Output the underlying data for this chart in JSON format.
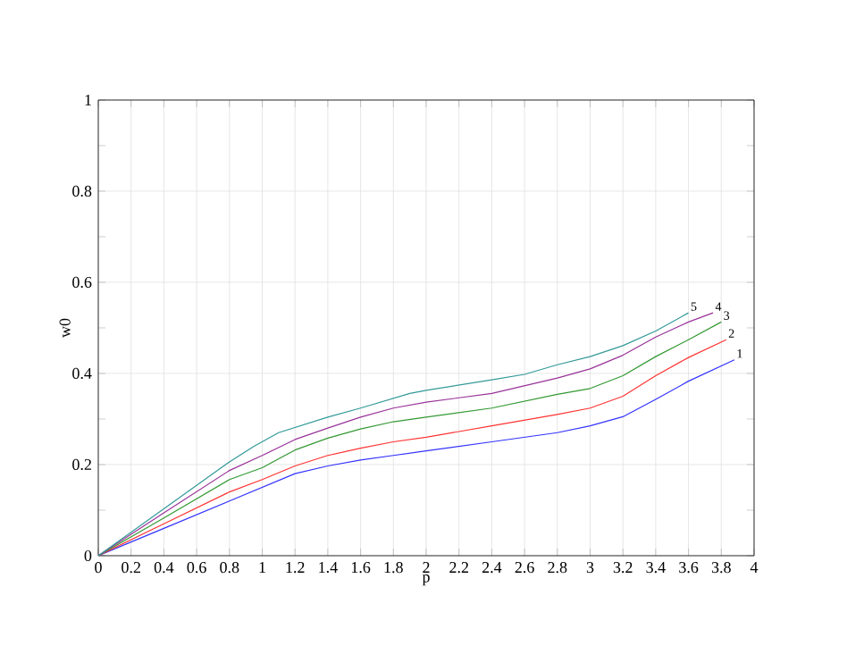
{
  "chart_data": {
    "type": "line",
    "xlabel": "p",
    "ylabel": "w0",
    "xlim": [
      0,
      4
    ],
    "ylim": [
      0,
      1
    ],
    "xticks": [
      0,
      0.2,
      0.4,
      0.6,
      0.8,
      1,
      1.2,
      1.4,
      1.6,
      1.8,
      2,
      2.2,
      2.4,
      2.6,
      2.8,
      3,
      3.2,
      3.4,
      3.6,
      3.8,
      4
    ],
    "yticks": [
      0,
      {
        "value": 0.1,
        "label": null
      },
      0.2,
      {
        "value": 0.3,
        "label": null
      },
      0.4,
      {
        "value": 0.5,
        "label": null
      },
      0.6,
      {
        "value": 0.7,
        "label": null
      },
      0.8,
      {
        "value": 0.9,
        "label": null
      },
      1
    ],
    "grid": true,
    "legend": false,
    "marker": "none",
    "line_style": "solid",
    "series": [
      {
        "name": "1",
        "color": "#3333ff",
        "x": [
          0,
          0.4,
          0.8,
          1,
          1.2,
          1.4,
          1.6,
          1.8,
          2,
          2.4,
          2.8,
          3,
          3.2,
          3.4,
          3.6,
          3.88
        ],
        "values": [
          0,
          0.06,
          0.12,
          0.15,
          0.18,
          0.197,
          0.21,
          0.22,
          0.23,
          0.25,
          0.27,
          0.285,
          0.305,
          0.343,
          0.383,
          0.43
        ]
      },
      {
        "name": "2",
        "color": "#ff3333",
        "x": [
          0,
          0.4,
          0.8,
          1,
          1.2,
          1.4,
          1.6,
          1.8,
          2,
          2.4,
          2.8,
          3,
          3.2,
          3.4,
          3.6,
          3.83
        ],
        "values": [
          0,
          0.07,
          0.14,
          0.167,
          0.197,
          0.22,
          0.236,
          0.25,
          0.26,
          0.285,
          0.31,
          0.324,
          0.35,
          0.395,
          0.435,
          0.474
        ]
      },
      {
        "name": "3",
        "color": "#339933",
        "x": [
          0,
          0.4,
          0.8,
          1,
          1.2,
          1.4,
          1.6,
          1.8,
          2,
          2.4,
          2.8,
          3,
          3.2,
          3.4,
          3.6,
          3.8
        ],
        "values": [
          0,
          0.083,
          0.167,
          0.193,
          0.232,
          0.258,
          0.278,
          0.294,
          0.304,
          0.324,
          0.354,
          0.367,
          0.395,
          0.437,
          0.474,
          0.513
        ]
      },
      {
        "name": "4",
        "color": "#993399",
        "x": [
          0,
          0.4,
          0.8,
          1,
          1.2,
          1.4,
          1.6,
          1.8,
          2,
          2.4,
          2.8,
          3,
          3.2,
          3.4,
          3.6,
          3.75
        ],
        "values": [
          0,
          0.094,
          0.187,
          0.22,
          0.255,
          0.28,
          0.304,
          0.324,
          0.337,
          0.356,
          0.39,
          0.41,
          0.44,
          0.48,
          0.513,
          0.533
        ]
      },
      {
        "name": "5",
        "color": "#339999",
        "x": [
          0,
          0.4,
          0.8,
          0.95,
          1.1,
          1.4,
          1.6,
          1.9,
          2,
          2.4,
          2.6,
          2.8,
          3,
          3.2,
          3.4,
          3.6
        ],
        "values": [
          0,
          0.103,
          0.206,
          0.24,
          0.27,
          0.304,
          0.324,
          0.356,
          0.363,
          0.386,
          0.398,
          0.419,
          0.437,
          0.461,
          0.493,
          0.533
        ]
      }
    ]
  }
}
